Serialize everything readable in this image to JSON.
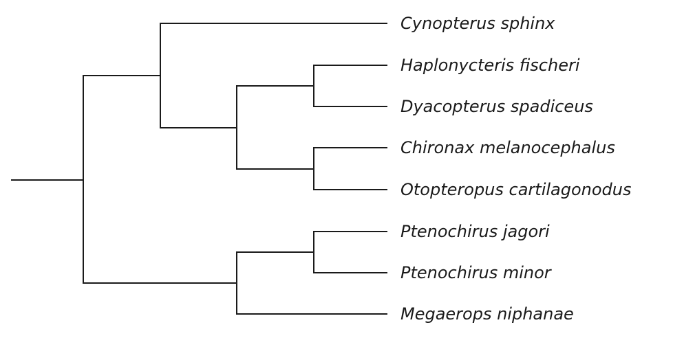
{
  "diagram": {
    "type": "phylogenetic-tree",
    "taxa": [
      "Cynopterus sphinx",
      "Haplonycteris fischeri",
      "Dyacopterus spadiceus",
      "Chironax melanocephalus",
      "Otopteropus cartilagonodus",
      "Ptenochirus jagori",
      "Ptenochirus minor",
      "Megaerops niphanae"
    ],
    "topology": "(((Cynopterus sphinx,((Haplonycteris fischeri,Dyacopterus spadiceus),(Chironax melanocephalus,Otopteropus cartilagonodus))),((Ptenochirus jagori,Ptenochirus minor),Megaerops niphanae)));"
  }
}
